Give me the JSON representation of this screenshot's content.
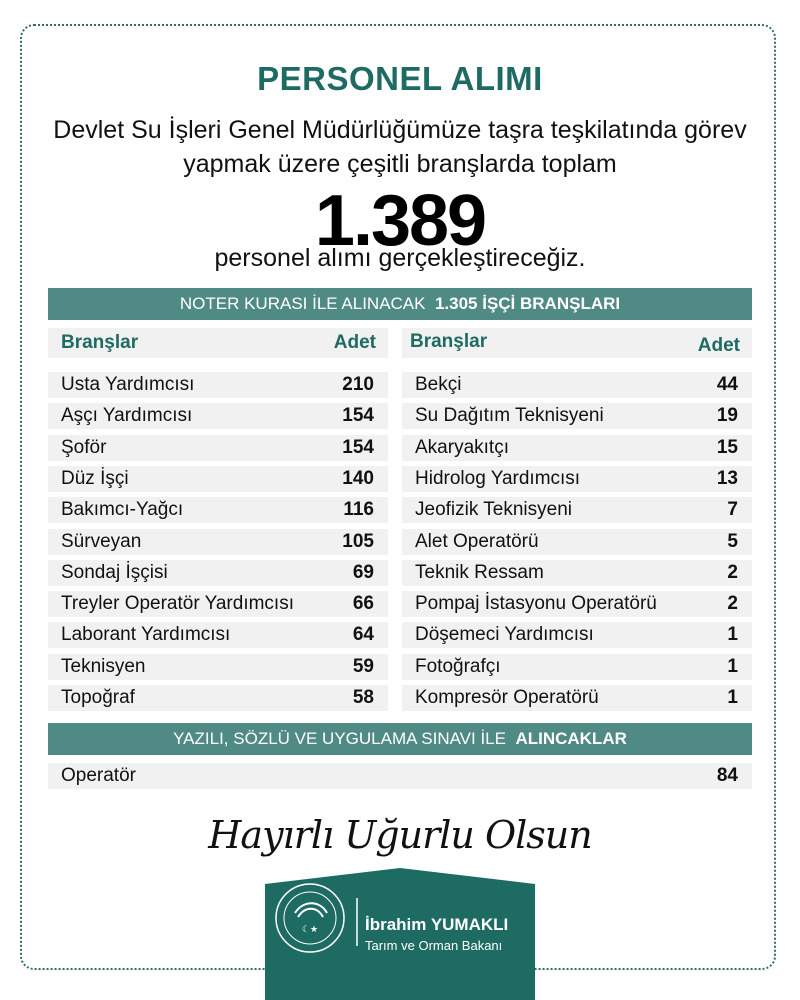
{
  "title": "PERSONEL ALIMI",
  "intro_line1": "Devlet Su İşleri Genel Müdürlüğümüze taşra teşkilatında görev",
  "intro_line2": "yapmak üzere çeşitli branşlarda toplam",
  "total": "1.389",
  "outro": "personel alımı gerçekleştireceğiz.",
  "section1": {
    "prefix": "NOTER KURASI İLE ALINACAK",
    "bold": "1.305 İŞÇİ BRANŞLARI"
  },
  "columns": {
    "branch": "Branşlar",
    "count": "Adet"
  },
  "left_rows": [
    {
      "name": "Usta Yardımcısı",
      "count": "210"
    },
    {
      "name": "Aşçı Yardımcısı",
      "count": "154"
    },
    {
      "name": "Şoför",
      "count": "154"
    },
    {
      "name": "Düz İşçi",
      "count": "140"
    },
    {
      "name": "Bakımcı-Yağcı",
      "count": "116"
    },
    {
      "name": "Sürveyan",
      "count": "105"
    },
    {
      "name": "Sondaj İşçisi",
      "count": "69"
    },
    {
      "name": "Treyler Operatör Yardımcısı",
      "count": "66"
    },
    {
      "name": "Laborant Yardımcısı",
      "count": "64"
    },
    {
      "name": "Teknisyen",
      "count": "59"
    },
    {
      "name": "Topoğraf",
      "count": "58"
    }
  ],
  "right_rows": [
    {
      "name": "Bekçi",
      "count": "44"
    },
    {
      "name": "Su Dağıtım Teknisyeni",
      "count": "19"
    },
    {
      "name": "Akaryakıtçı",
      "count": "15"
    },
    {
      "name": "Hidrolog Yardımcısı",
      "count": "13"
    },
    {
      "name": "Jeofizik Teknisyeni",
      "count": "7"
    },
    {
      "name": "Alet Operatörü",
      "count": "5"
    },
    {
      "name": "Teknik Ressam",
      "count": "2"
    },
    {
      "name": "Pompaj İstasyonu Operatörü",
      "count": "2"
    },
    {
      "name": "Döşemeci Yardımcısı",
      "count": "1"
    },
    {
      "name": "Fotoğrafçı",
      "count": "1"
    },
    {
      "name": "Kompresör Operatörü",
      "count": "1"
    }
  ],
  "section2": {
    "prefix": "YAZILI, SÖZLÜ VE UYGULAMA SINAVI  İLE",
    "bold": "ALINCAKLAR"
  },
  "exam_rows": [
    {
      "name": "Operatör",
      "count": "84"
    }
  ],
  "signature": "Hayırlı Uğurlu Olsun",
  "footer": {
    "name": "İbrahim YUMAKLI",
    "role": "Tarım ve Orman Bakanı",
    "seal_icon": "ministry-seal-icon"
  },
  "colors": {
    "teal_dark": "#1d6b63",
    "teal_bar": "#4f8a85",
    "row_bg": "#f1f1f1"
  }
}
